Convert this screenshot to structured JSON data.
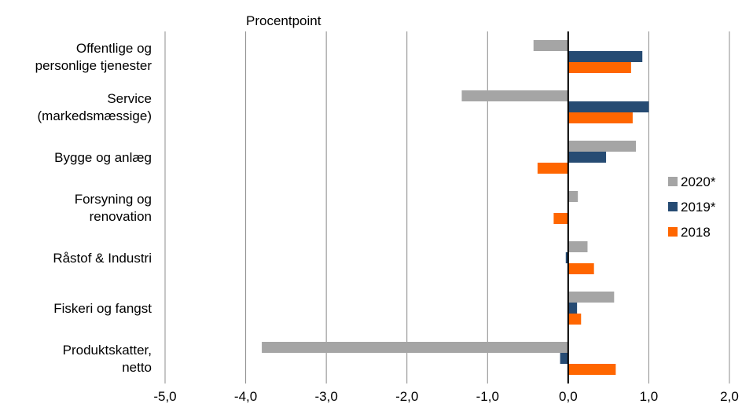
{
  "chart_data": {
    "type": "bar",
    "orientation": "horizontal",
    "unit_label": "Procentpoint",
    "categories": [
      [
        "Offentlige og",
        "personlige tjenester"
      ],
      [
        "Service",
        "(markedsmæssige)"
      ],
      [
        "Bygge og anlæg"
      ],
      [
        "Forsyning og",
        "renovation"
      ],
      [
        "Råstof & Industri"
      ],
      [
        "Fiskeri og fangst"
      ],
      [
        "Produktskatter,",
        "netto"
      ]
    ],
    "series": [
      {
        "name": "2020*",
        "color": "#a5a5a5",
        "values": [
          -0.43,
          -1.32,
          0.84,
          0.12,
          0.24,
          0.57,
          -3.8
        ]
      },
      {
        "name": "2019*",
        "color": "#264b73",
        "values": [
          0.92,
          1.0,
          0.47,
          0.0,
          -0.03,
          0.11,
          -0.1
        ]
      },
      {
        "name": "2018",
        "color": "#ff6600",
        "values": [
          0.78,
          0.8,
          -0.38,
          -0.18,
          0.32,
          0.16,
          0.59
        ]
      }
    ],
    "xlim": [
      -5,
      2
    ],
    "xticks": [
      -5,
      -4,
      -3,
      -2,
      -1,
      0,
      1,
      2
    ],
    "xtick_labels": [
      "-5,0",
      "-4,0",
      "-3,0",
      "-2,0",
      "-1,0",
      "0,0",
      "1,0",
      "2,0"
    ],
    "grid": true,
    "legend_position": "right"
  }
}
